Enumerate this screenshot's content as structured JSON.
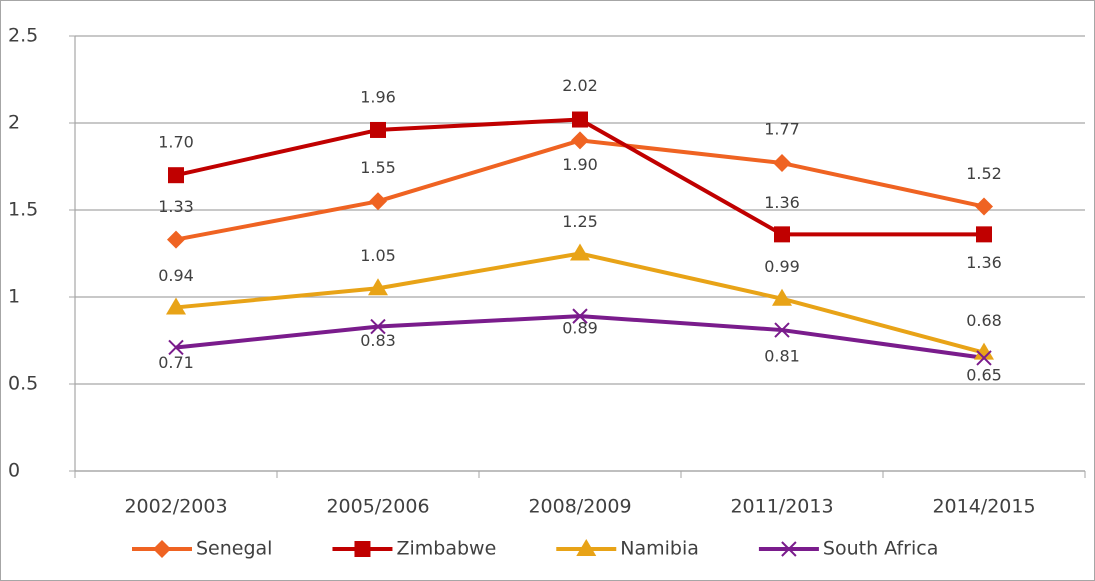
{
  "chart_data": {
    "type": "line",
    "categories": [
      "2002/2003",
      "2005/2006",
      "2008/2009",
      "2011/2013",
      "2014/2015"
    ],
    "series": [
      {
        "name": "Senegal",
        "color": "#ef6322",
        "marker": "diamond",
        "values": [
          1.33,
          1.55,
          1.9,
          1.77,
          1.52
        ],
        "value_labels": [
          "1.33",
          "1.55",
          "1.90",
          "1.77",
          "1.52"
        ]
      },
      {
        "name": "Zimbabwe",
        "color": "#c00000",
        "marker": "square",
        "values": [
          1.7,
          1.96,
          2.02,
          1.36,
          1.36
        ],
        "value_labels": [
          "1.70",
          "1.96",
          "2.02",
          "1.36",
          "1.36"
        ]
      },
      {
        "name": "Namibia",
        "color": "#e8a317",
        "marker": "triangle",
        "values": [
          0.94,
          1.05,
          1.25,
          0.99,
          0.68
        ],
        "value_labels": [
          "0.94",
          "1.05",
          "1.25",
          "0.99",
          "0.68"
        ]
      },
      {
        "name": "South Africa",
        "color": "#7a1c8c",
        "marker": "x",
        "values": [
          0.71,
          0.83,
          0.89,
          0.81,
          0.65
        ],
        "value_labels": [
          "0.71",
          "0.83",
          "0.89",
          "0.81",
          "0.65"
        ]
      }
    ],
    "ylim": [
      0,
      2.5
    ],
    "yticks": [
      0,
      0.5,
      1,
      1.5,
      2,
      2.5
    ],
    "grid": true,
    "legend": "bottom"
  }
}
